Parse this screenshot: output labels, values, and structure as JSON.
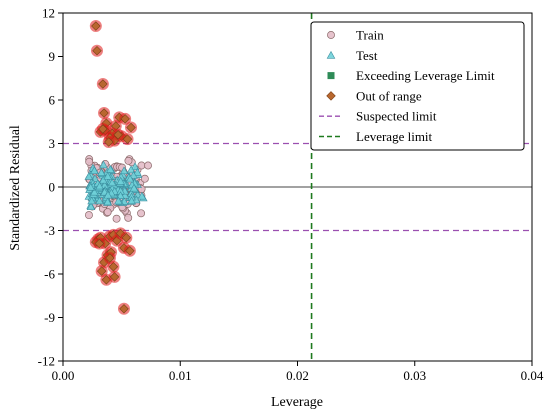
{
  "chart_data": {
    "type": "scatter",
    "xlabel": "Leverage",
    "ylabel": "Standardized Residual",
    "xlim": [
      0.0,
      0.04
    ],
    "ylim": [
      -12,
      12
    ],
    "xticks": [
      0.0,
      0.01,
      0.02,
      0.03,
      0.04
    ],
    "xtick_labels": [
      "0.00",
      "0.01",
      "0.02",
      "0.03",
      "0.04"
    ],
    "yticks": [
      -12,
      -9,
      -6,
      -3,
      0,
      3,
      6,
      9,
      12
    ],
    "ytick_labels": [
      "-12",
      "-9",
      "-6",
      "-3",
      "0",
      "3",
      "6",
      "9",
      "12"
    ],
    "legend_position": "top-right",
    "reference_lines": {
      "zero_line": 0,
      "suspected_limit": [
        3,
        -3
      ],
      "leverage_limit": 0.0212
    },
    "colors": {
      "train_fill": "#e3bcc8",
      "train_edge": "#8a6a6a",
      "test_fill": "#6fd0d8",
      "test_edge": "#3b8fa0",
      "exceeding_fill": "#2e8b57",
      "out_of_range_fill": "#b8672f",
      "out_of_range_edge": "#7a3e14",
      "suspected_limit": "#9b4fb0",
      "leverage_limit": "#1f7a1f"
    },
    "legend": [
      {
        "label": "Train",
        "marker": "circle"
      },
      {
        "label": "Test",
        "marker": "triangle"
      },
      {
        "label": "Exceeding Leverage Limit",
        "marker": "square"
      },
      {
        "label": "Out of range",
        "marker": "diamond"
      },
      {
        "label": "Suspected limit",
        "marker": "dash-purple"
      },
      {
        "label": "Leverage limit",
        "marker": "dash-green"
      }
    ],
    "series": [
      {
        "name": "Out of range",
        "x": [
          0.0028,
          0.0029,
          0.0034,
          0.0035,
          0.0037,
          0.0032,
          0.0048,
          0.0053,
          0.0058,
          0.0045,
          0.0042,
          0.005,
          0.0055,
          0.004,
          0.0036,
          0.0044,
          0.0047,
          0.0039,
          0.0034,
          0.003,
          0.0028,
          0.0032,
          0.0036,
          0.004,
          0.0043,
          0.0046,
          0.0049,
          0.0054,
          0.0038,
          0.0035,
          0.0033,
          0.0041,
          0.0037,
          0.0044,
          0.0052,
          0.0057,
          0.0031,
          0.0043,
          0.004,
          0.0052
        ],
        "y": [
          11.1,
          9.4,
          7.1,
          5.1,
          4.4,
          3.8,
          4.8,
          4.7,
          4.1,
          4.2,
          3.7,
          3.5,
          3.3,
          3.4,
          3.9,
          3.2,
          3.6,
          3.1,
          4.0,
          -3.6,
          -3.8,
          -3.5,
          -3.9,
          -3.4,
          -3.3,
          -3.7,
          -3.2,
          -3.5,
          -4.7,
          -5.2,
          -5.8,
          -4.5,
          -6.4,
          -6.2,
          -4.2,
          -4.4,
          -3.9,
          -5.5,
          -4.9,
          -8.4
        ]
      },
      {
        "name": "Exceeding Leverage Limit",
        "x": [],
        "y": []
      }
    ],
    "point_clouds": [
      {
        "name": "Train",
        "x_range": [
          0.0022,
          0.0075
        ],
        "y_range": [
          -2.8,
          2.9
        ],
        "count": 200
      },
      {
        "name": "Test",
        "x_range": [
          0.0022,
          0.0072
        ],
        "y_range": [
          -2.2,
          2.3
        ],
        "count": 150
      }
    ]
  }
}
